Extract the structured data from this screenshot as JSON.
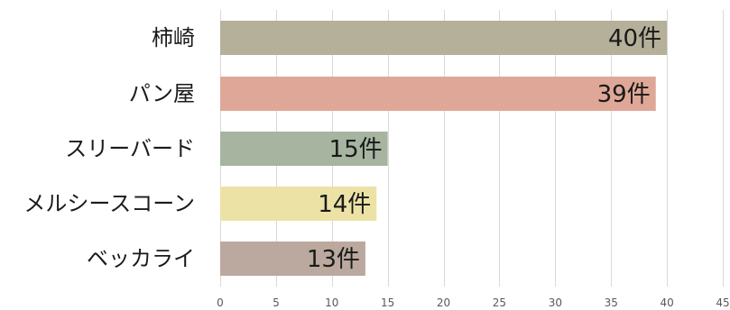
{
  "chart_data": {
    "type": "bar",
    "orientation": "horizontal",
    "categories": [
      "柿崎",
      "パン屋",
      "スリーバード",
      "メルシースコーン",
      "ベッカライ"
    ],
    "values": [
      40,
      39,
      15,
      14,
      13
    ],
    "data_labels": [
      "40件",
      "39件",
      "15件",
      "14件",
      "13件"
    ],
    "colors": [
      "#b5b09a",
      "#dfa797",
      "#a6b4a0",
      "#ede2a6",
      "#bba89e"
    ],
    "xlim": [
      0,
      45
    ],
    "xticks": [
      0,
      5,
      10,
      15,
      20,
      25,
      30,
      35,
      40,
      45
    ],
    "xtick_labels": [
      "0",
      "5",
      "10",
      "15",
      "20",
      "25",
      "30",
      "35",
      "40",
      "45"
    ],
    "grid": true,
    "legend": "none"
  }
}
